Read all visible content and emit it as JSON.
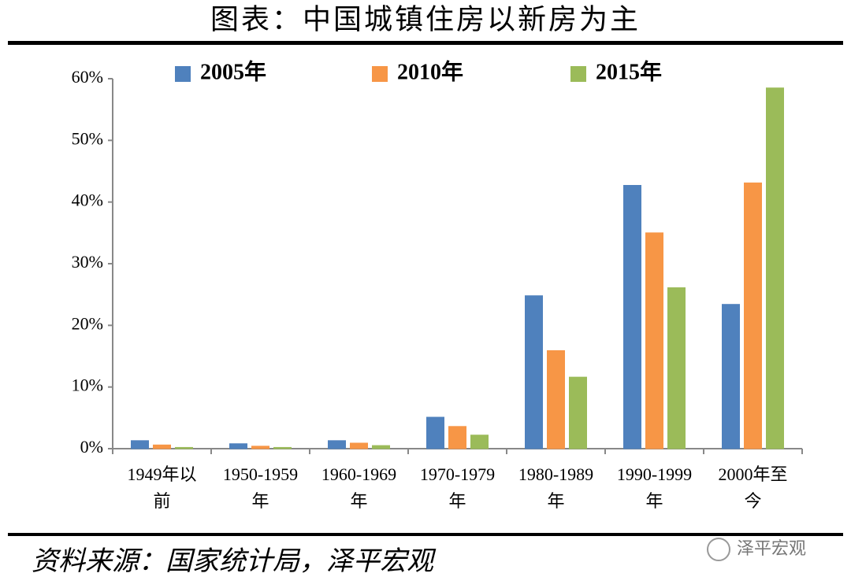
{
  "chart_data": {
    "type": "bar",
    "title": "图表：中国城镇住房以新房为主",
    "categories": [
      "1949年以前",
      "1950-1959年",
      "1960-1969年",
      "1970-1979年",
      "1980-1989年",
      "1990-1999年",
      "2000年至今"
    ],
    "series": [
      {
        "name": "2005年",
        "color": "#4f81bd",
        "values": [
          1.3,
          0.8,
          1.3,
          5.1,
          24.8,
          42.7,
          23.4
        ]
      },
      {
        "name": "2010年",
        "color": "#f79646",
        "values": [
          0.6,
          0.4,
          0.9,
          3.6,
          15.9,
          35.0,
          43.1
        ]
      },
      {
        "name": "2015年",
        "color": "#9bbb59",
        "values": [
          0.2,
          0.2,
          0.5,
          2.2,
          11.6,
          26.1,
          58.5
        ]
      }
    ],
    "ylim": [
      0,
      60
    ],
    "yticks": [
      {
        "value": 0,
        "label": "0%"
      },
      {
        "value": 10,
        "label": "10%"
      },
      {
        "value": 20,
        "label": "20%"
      },
      {
        "value": 30,
        "label": "30%"
      },
      {
        "value": 40,
        "label": "40%"
      },
      {
        "value": 50,
        "label": "50%"
      },
      {
        "value": 60,
        "label": "60%"
      }
    ],
    "grid": false,
    "source": "资料来源：国家统计局，泽平宏观",
    "watermark": "泽平宏观"
  }
}
